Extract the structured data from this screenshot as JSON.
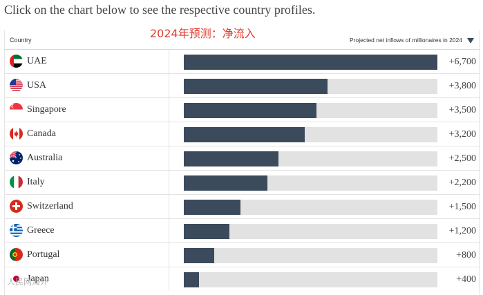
{
  "instruction": "Click on the chart below to see the respective country profiles.",
  "overlay_title": "2024年预测：净流入",
  "watermark": "人民网海外",
  "colors": {
    "bar": "#3c4b5c",
    "track": "#e2e2e2",
    "overlay_title": "#e23a2f"
  },
  "chart_data": {
    "type": "bar",
    "orientation": "horizontal",
    "column_headers": {
      "category": "Country",
      "value": "Projected net inflows of millionaires in 2024"
    },
    "sort_icon": "triangle-down-icon",
    "xlim": [
      0,
      6700
    ],
    "rows": [
      {
        "country": "UAE",
        "value": 6700,
        "label": "+6,700",
        "flag": "uae"
      },
      {
        "country": "USA",
        "value": 3800,
        "label": "+3,800",
        "flag": "usa"
      },
      {
        "country": "Singapore",
        "value": 3500,
        "label": "+3,500",
        "flag": "singapore"
      },
      {
        "country": "Canada",
        "value": 3200,
        "label": "+3,200",
        "flag": "canada"
      },
      {
        "country": "Australia",
        "value": 2500,
        "label": "+2,500",
        "flag": "australia"
      },
      {
        "country": "Italy",
        "value": 2200,
        "label": "+2,200",
        "flag": "italy"
      },
      {
        "country": "Switzerland",
        "value": 1500,
        "label": "+1,500",
        "flag": "switzerland"
      },
      {
        "country": "Greece",
        "value": 1200,
        "label": "+1,200",
        "flag": "greece"
      },
      {
        "country": "Portugal",
        "value": 800,
        "label": "+800",
        "flag": "portugal"
      },
      {
        "country": "Japan",
        "value": 400,
        "label": "+400",
        "flag": "japan"
      }
    ]
  }
}
